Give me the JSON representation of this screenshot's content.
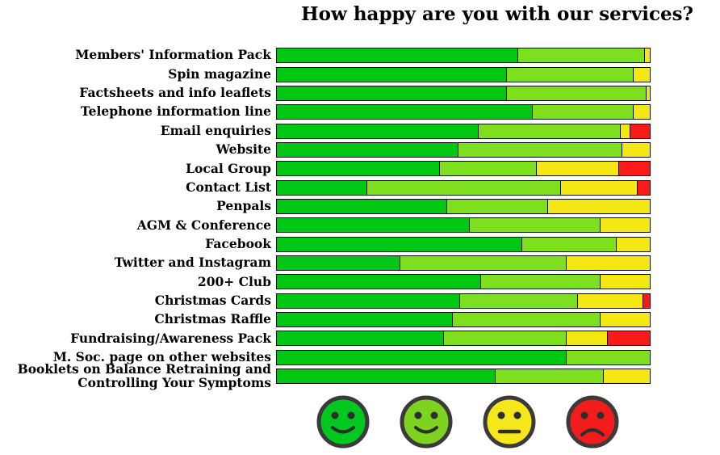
{
  "title": "How happy are you with our services?",
  "legend": {
    "faces": [
      {
        "name": "very-happy-face",
        "mouth": "smile",
        "color": "#00c81f"
      },
      {
        "name": "happy-face",
        "mouth": "smile",
        "color": "#7ed321"
      },
      {
        "name": "neutral-face",
        "mouth": "neutral",
        "color": "#f6e71a"
      },
      {
        "name": "unhappy-face",
        "mouth": "frown",
        "color": "#f21c1c"
      }
    ],
    "outline_color": "#3a3a3a",
    "feature_color": "#2e2e2e"
  },
  "chart_data": {
    "type": "bar",
    "orientation": "horizontal",
    "stacked": true,
    "unit": "percent",
    "xlim": [
      0,
      100
    ],
    "grid": false,
    "legend_position": "bottom",
    "title": "How happy are you with our services?",
    "categories": [
      "Members' Information Pack",
      "Spin magazine",
      "Factsheets and info leaflets",
      "Telephone information line",
      "Email enquiries",
      "Website",
      "Local Group",
      "Contact List",
      "Penpals",
      "AGM & Conference",
      "Facebook",
      "Twitter and Instagram",
      "200+ Club",
      "Christmas Cards",
      "Christmas Raffle",
      "Fundraising/Awareness Pack",
      "M. Soc. page on other websites",
      "Booklets on Balance Retraining and Controlling Your Symptoms"
    ],
    "series": [
      {
        "name": "very-happy",
        "color": "#00c614",
        "values": [
          64.5,
          61.5,
          61.5,
          68.5,
          54,
          48.5,
          43.5,
          24,
          45.5,
          51.5,
          65.5,
          33,
          54.5,
          49,
          47,
          44.5,
          77.5,
          58.5
        ]
      },
      {
        "name": "happy",
        "color": "#7ddf1d",
        "values": [
          34,
          34,
          37.5,
          27,
          38,
          44,
          26,
          52,
          27,
          35,
          25.5,
          44.5,
          32,
          31.5,
          39.5,
          33,
          22.5,
          29
        ]
      },
      {
        "name": "neutral",
        "color": "#f5e713",
        "values": [
          1.5,
          4.5,
          1,
          4.5,
          2.5,
          7.5,
          22,
          20.5,
          27.5,
          13.5,
          9,
          22.5,
          13.5,
          17.5,
          13.5,
          11,
          0,
          12.5
        ]
      },
      {
        "name": "unhappy",
        "color": "#fa1a1a",
        "values": [
          0,
          0,
          0,
          0,
          5.5,
          0,
          8.5,
          3.5,
          0,
          0,
          0,
          0,
          0,
          2,
          0,
          11.5,
          0,
          0
        ]
      }
    ]
  }
}
